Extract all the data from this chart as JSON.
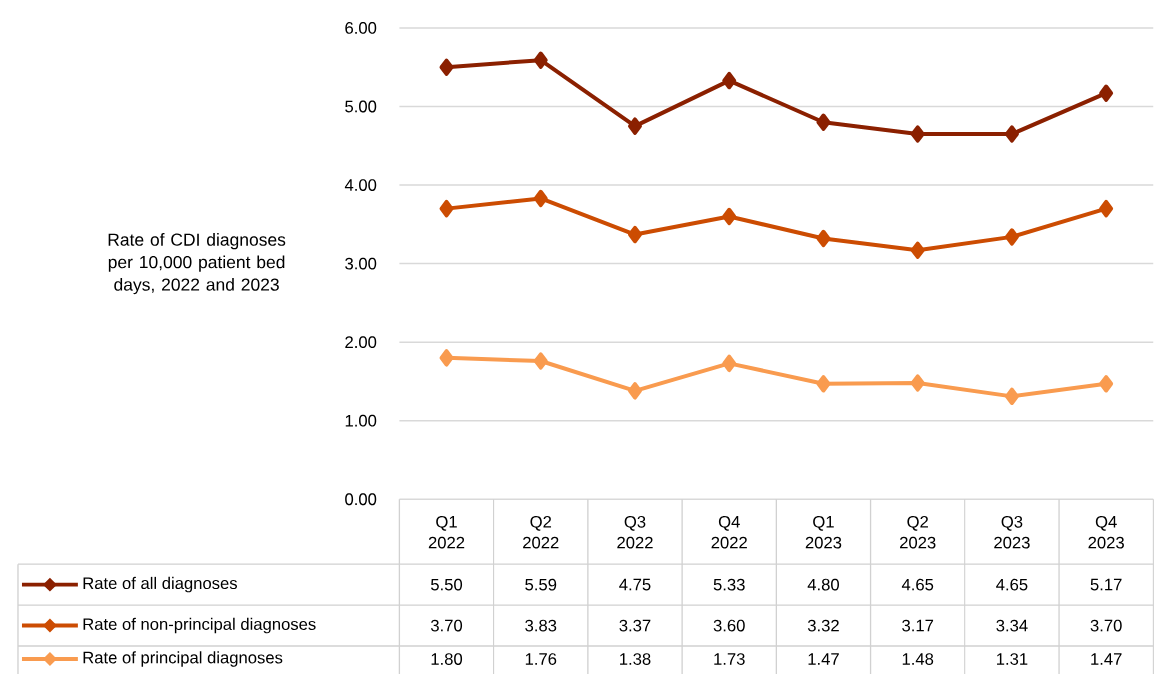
{
  "chart_data": {
    "type": "line",
    "ylabel": "Rate of CDI diagnoses per 10,000 patient bed days, 2022 and 2023",
    "categories": [
      "Q1 2022",
      "Q2 2022",
      "Q3 2022",
      "Q4 2022",
      "Q1 2023",
      "Q2 2023",
      "Q3 2023",
      "Q4 2023"
    ],
    "series": [
      {
        "name": "Rate of all diagnoses",
        "color": "#8b2000",
        "values": [
          5.5,
          5.59,
          4.75,
          5.33,
          4.8,
          4.65,
          4.65,
          5.17
        ],
        "value_labels": [
          "5.50",
          "5.59",
          "4.75",
          "5.33",
          "4.80",
          "4.65",
          "4.65",
          "5.17"
        ]
      },
      {
        "name": "Rate of non-principal diagnoses",
        "color": "#cc4c02",
        "values": [
          3.7,
          3.83,
          3.37,
          3.6,
          3.32,
          3.17,
          3.34,
          3.7
        ],
        "value_labels": [
          "3.70",
          "3.83",
          "3.37",
          "3.60",
          "3.32",
          "3.17",
          "3.34",
          "3.70"
        ]
      },
      {
        "name": "Rate of principal diagnoses",
        "color": "#f99b4f",
        "values": [
          1.8,
          1.76,
          1.38,
          1.73,
          1.47,
          1.48,
          1.31,
          1.47
        ],
        "value_labels": [
          "1.80",
          "1.76",
          "1.38",
          "1.73",
          "1.47",
          "1.48",
          "1.31",
          "1.47"
        ]
      }
    ],
    "ylim": [
      0,
      6
    ],
    "yticks": [
      {
        "value": 0,
        "label": "0.00"
      },
      {
        "value": 1,
        "label": "1.00"
      },
      {
        "value": 2,
        "label": "2.00"
      },
      {
        "value": 3,
        "label": "3.00"
      },
      {
        "value": 4,
        "label": "4.00"
      },
      {
        "value": 5,
        "label": "5.00"
      },
      {
        "value": 6,
        "label": "6.00"
      }
    ],
    "grid": "y",
    "legend": "bottom",
    "marker": "diamond",
    "line_style": "solid"
  }
}
